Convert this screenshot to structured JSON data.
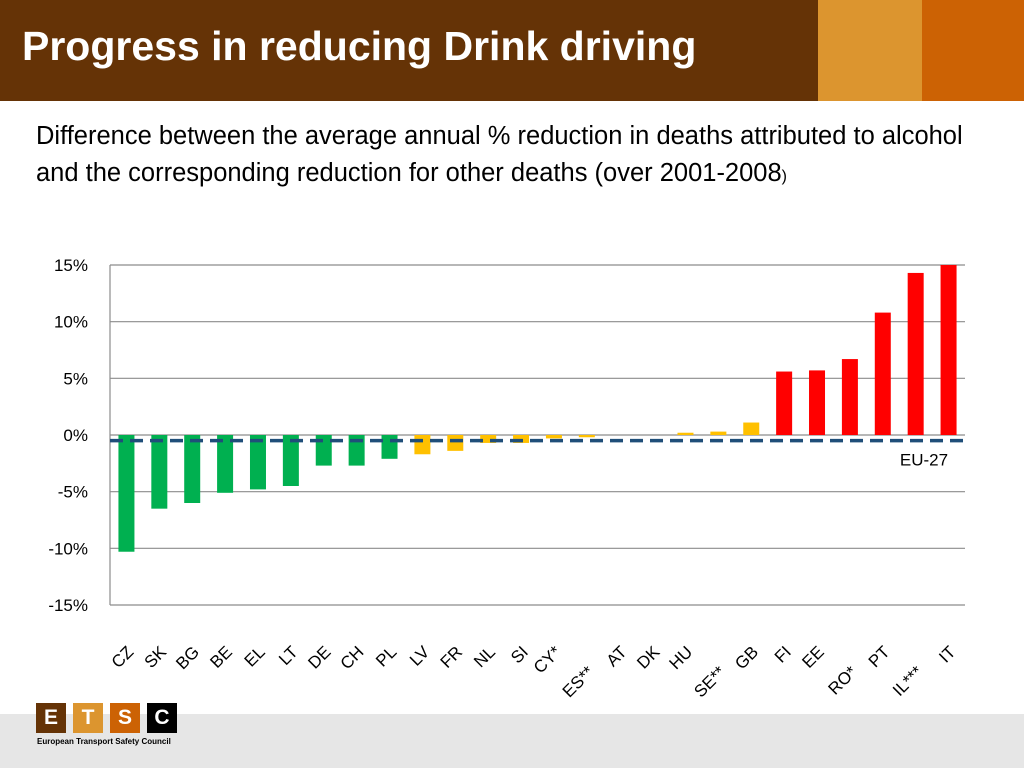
{
  "header": {
    "title": "Progress in reducing Drink driving",
    "colors": {
      "title_bar": "#653306",
      "accent_1": "#dc952f",
      "accent_2": "#cc6204"
    }
  },
  "subtitle": {
    "text": "Difference between the average annual % reduction in deaths attributed to alcohol and the corresponding reduction for other deaths (over 2001-2008",
    "closing": ")"
  },
  "chart_data": {
    "type": "bar",
    "title": "",
    "xlabel": "",
    "ylabel": "",
    "ylim": [
      -15,
      15
    ],
    "yticks": [
      15,
      10,
      5,
      0,
      -5,
      -10,
      -15
    ],
    "ytick_labels": [
      "15%",
      "10%",
      "5%",
      "0%",
      "-5%",
      "-10%",
      "-15%"
    ],
    "grid": true,
    "categories": [
      "CZ",
      "SK",
      "BG",
      "BE",
      "EL",
      "LT",
      "DE",
      "CH",
      "PL",
      "LV",
      "FR",
      "NL",
      "SI",
      "CY*",
      "ES**",
      "AT",
      "DK",
      "HU",
      "SE**",
      "GB",
      "FI",
      "EE",
      "RO*",
      "PT",
      "IL***",
      "IT"
    ],
    "label_rows": [
      0,
      0,
      0,
      0,
      0,
      0,
      0,
      0,
      0,
      0,
      0,
      0,
      0,
      0,
      1,
      0,
      0,
      0,
      1,
      0,
      0,
      0,
      1,
      0,
      1,
      0
    ],
    "values": [
      -10.3,
      -6.5,
      -6.0,
      -5.1,
      -4.8,
      -4.5,
      -2.7,
      -2.7,
      -2.1,
      -1.7,
      -1.4,
      -0.7,
      -0.7,
      -0.3,
      -0.2,
      0,
      0,
      0.2,
      0.3,
      1.1,
      5.6,
      5.7,
      6.7,
      10.8,
      14.3,
      15.0
    ],
    "bar_colors": [
      "#00b050",
      "#00b050",
      "#00b050",
      "#00b050",
      "#00b050",
      "#00b050",
      "#00b050",
      "#00b050",
      "#00b050",
      "#ffc000",
      "#ffc000",
      "#ffc000",
      "#ffc000",
      "#ffc000",
      "#ffc000",
      "#ffc000",
      "#ffc000",
      "#ffc000",
      "#ffc000",
      "#ffc000",
      "#ff0000",
      "#ff0000",
      "#ff0000",
      "#ff0000",
      "#ff0000",
      "#ff0000"
    ],
    "reference_line": {
      "label": "EU-27",
      "value": -0.5,
      "color": "#1f4e79"
    }
  },
  "footer": {
    "logo_letters": [
      "E",
      "T",
      "S",
      "C"
    ],
    "logo_colors": [
      "#653306",
      "#dc952f",
      "#cc6204",
      "#000000"
    ],
    "organisation": "European Transport Safety Council"
  }
}
